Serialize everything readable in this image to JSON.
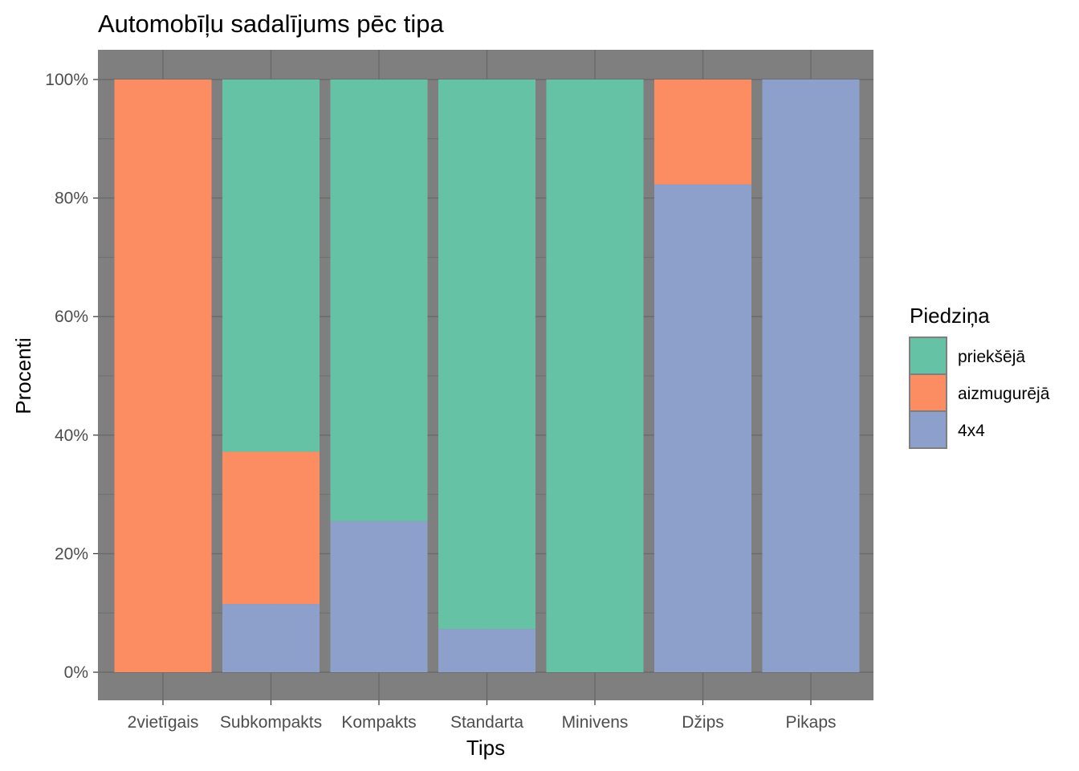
{
  "chart_data": {
    "type": "bar",
    "stacked": true,
    "title": "Automobīļu sadalījums pēc tipa",
    "xlabel": "Tips",
    "ylabel": "Procenti",
    "ylim": [
      0,
      1
    ],
    "y_ticks": [
      "0%",
      "20%",
      "40%",
      "60%",
      "80%",
      "100%"
    ],
    "grid": true,
    "panel_background": "#7f7f7f",
    "legend": {
      "title": "Piedziņa",
      "placement": "right"
    },
    "categories": [
      "2vietīgais",
      "Subkompakts",
      "Kompakts",
      "Standarta",
      "Minivens",
      "Džips",
      "Pikaps"
    ],
    "series": [
      {
        "name": "priekšējā",
        "color": "#66c2a5",
        "values": [
          0.0,
          0.628,
          0.745,
          0.927,
          1.0,
          0.0,
          0.0
        ]
      },
      {
        "name": "aizmugurējā",
        "color": "#fc8d62",
        "values": [
          1.0,
          0.257,
          0.0,
          0.0,
          0.0,
          0.177,
          0.0
        ]
      },
      {
        "name": "4x4",
        "color": "#8da0cb",
        "values": [
          0.0,
          0.115,
          0.255,
          0.073,
          0.0,
          0.823,
          1.0
        ]
      }
    ]
  }
}
